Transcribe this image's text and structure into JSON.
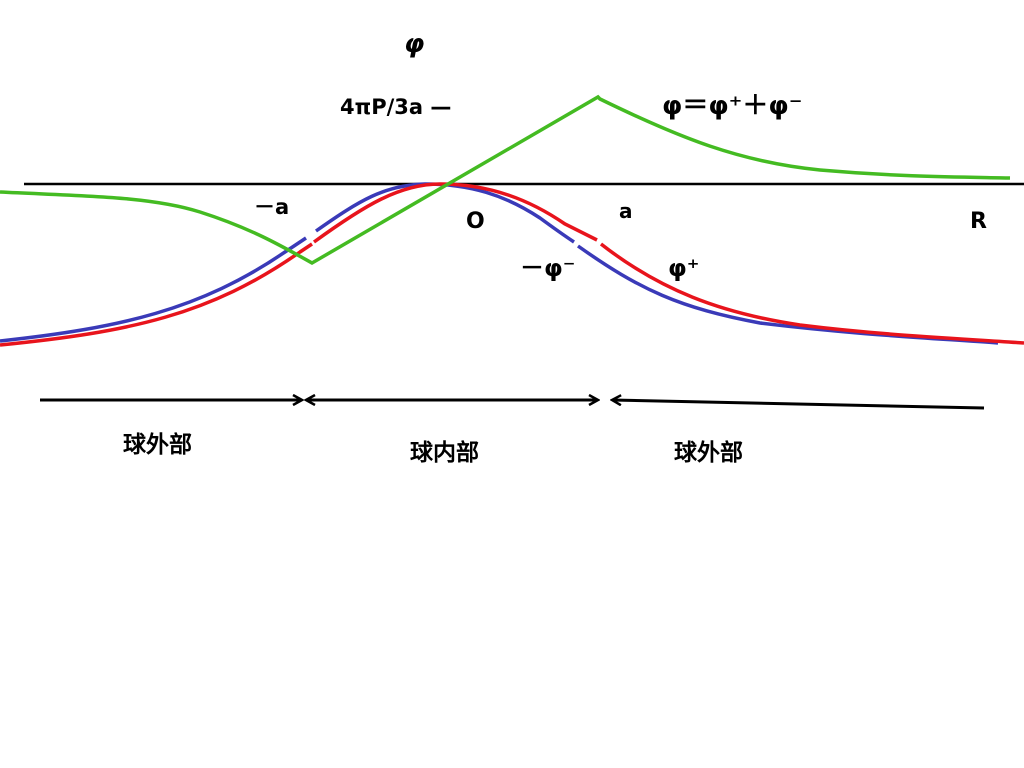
{
  "labels": {
    "phi_axis": "φ",
    "peak_value": "4πP/3a —",
    "total_formula": "φ＝φ⁺＋φ⁻",
    "neg_a": "－a",
    "origin": "O",
    "pos_a": "a",
    "r_end": "R",
    "neg_phi_minus": "－φ⁻",
    "phi_plus": "φ⁺"
  },
  "regions": [
    {
      "label": "球外部"
    },
    {
      "label": "球内部"
    },
    {
      "label": "球外部"
    }
  ],
  "colors": {
    "axis": "#000000",
    "total_curve": "#44bb22",
    "phi_plus_curve": "#e8141c",
    "neg_phi_minus_curve": "#3a3ab8"
  }
}
